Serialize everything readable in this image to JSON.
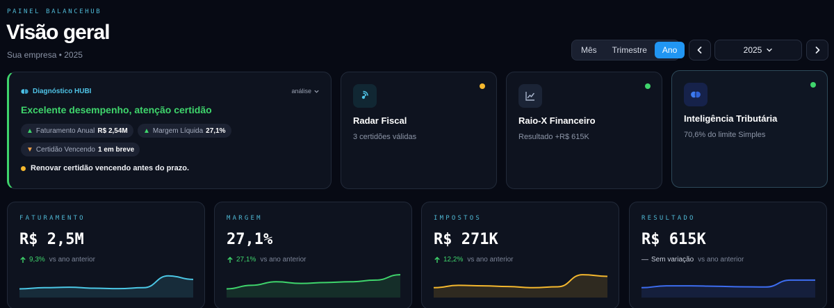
{
  "header": {
    "eyebrow": "PAINEL BALANCEHUB",
    "title": "Visão geral",
    "subtitle": "Sua empresa • 2025",
    "periods": [
      "Mês",
      "Trimestre",
      "Ano"
    ],
    "active_period": "Ano",
    "year": "2025"
  },
  "diagnostic": {
    "label": "Diagnóstico HUBI",
    "link": "análise",
    "headline": "Excelente desempenho, atenção certidão",
    "chips": [
      {
        "prefix": "▲",
        "label": "Faturamento Anual",
        "value": "R$ 2,54M",
        "color": "#3fd56c"
      },
      {
        "prefix": "▲",
        "label": "Margem Líquida",
        "value": "27,1%",
        "color": "#3fd56c"
      },
      {
        "prefix": "▼",
        "label": "Certidão Vencendo",
        "value": "1 em breve",
        "color": "#f0a24a"
      }
    ],
    "note": "Renovar certidão vencendo antes do prazo.",
    "note_color": "#f5b82e"
  },
  "modules": [
    {
      "title": "Radar Fiscal",
      "subtitle": "3 certidões válidas",
      "icon": "radar-icon",
      "status_color": "#f5b82e"
    },
    {
      "title": "Raio-X Financeiro",
      "subtitle": "Resultado +R$ 615K",
      "icon": "chart-line-icon",
      "status_color": "#3fd56c"
    },
    {
      "title": "Inteligência Tributária",
      "subtitle": "70,6% do limite Simples",
      "icon": "brain-icon",
      "status_color": "#3fd56c"
    }
  ],
  "kpis": [
    {
      "label": "FATURAMENTO",
      "value": "R$ 2,5M",
      "trend": "up",
      "delta": "9,3%",
      "compare": "vs ano anterior",
      "color": "#4cc8e6",
      "spark": [
        0.25,
        0.3,
        0.32,
        0.28,
        0.26,
        0.3,
        0.8,
        0.65
      ]
    },
    {
      "label": "MARGEM",
      "value": "27,1%",
      "trend": "up",
      "delta": "27,1%",
      "compare": "vs ano anterior",
      "color": "#3fd56c",
      "spark": [
        0.25,
        0.4,
        0.55,
        0.48,
        0.52,
        0.55,
        0.62,
        0.85
      ]
    },
    {
      "label": "IMPOSTOS",
      "value": "R$ 271K",
      "trend": "up",
      "delta": "12,2%",
      "compare": "vs ano anterior",
      "color": "#f5b82e",
      "spark": [
        0.3,
        0.4,
        0.38,
        0.35,
        0.3,
        0.34,
        0.85,
        0.78
      ]
    },
    {
      "label": "RESULTADO",
      "value": "R$ 615K",
      "trend": "flat",
      "delta": "Sem variação",
      "compare": "vs ano anterior",
      "color": "#3d6df0",
      "spark": [
        0.3,
        0.38,
        0.38,
        0.36,
        0.34,
        0.33,
        0.62,
        0.62
      ]
    }
  ]
}
